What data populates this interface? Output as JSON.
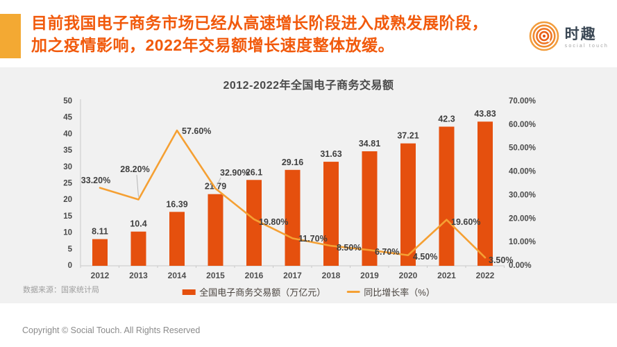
{
  "header": {
    "title_line1": "目前我国电子商务市场已经从高速增长阶段进入成熟发展阶段，",
    "title_line2": "加之疫情影响，2022年交易额增长速度整体放缓。",
    "logo_name": "时趣",
    "logo_subtitle": "social touch"
  },
  "chart_data": {
    "type": "bar",
    "title": "2012-2022年全国电子商务交易额",
    "categories": [
      "2012",
      "2013",
      "2014",
      "2015",
      "2016",
      "2017",
      "2018",
      "2019",
      "2020",
      "2021",
      "2022"
    ],
    "series": [
      {
        "name": "全国电子商务交易额（万亿元）",
        "type": "bar",
        "axis": "left",
        "values": [
          8.11,
          10.4,
          16.39,
          21.79,
          26.1,
          29.16,
          31.63,
          34.81,
          37.21,
          42.3,
          43.83
        ],
        "labels": [
          "8.11",
          "10.4",
          "16.39",
          "21.79",
          "26.1",
          "29.16",
          "31.63",
          "34.81",
          "37.21",
          "42.3",
          "43.83"
        ]
      },
      {
        "name": "同比增长率（%）",
        "type": "line",
        "axis": "right",
        "values": [
          33.2,
          28.2,
          57.6,
          32.9,
          19.8,
          11.7,
          8.5,
          6.7,
          4.5,
          19.6,
          3.5
        ],
        "labels": [
          "33.20%",
          "28.20%",
          "57.60%",
          "32.90%",
          "19.80%",
          "11.70%",
          "8.50%",
          "6.70%",
          "4.50%",
          "19.60%",
          "3.50%"
        ]
      }
    ],
    "left_axis": {
      "min": 0,
      "max": 50,
      "step": 5,
      "ticks": [
        "0",
        "5",
        "10",
        "15",
        "20",
        "25",
        "30",
        "35",
        "40",
        "45",
        "50"
      ]
    },
    "right_axis": {
      "min": 0,
      "max": 70,
      "step": 10,
      "ticks": [
        "0.00%",
        "10.00%",
        "20.00%",
        "30.00%",
        "40.00%",
        "50.00%",
        "60.00%",
        "70.00%"
      ]
    },
    "grid": false,
    "legend_position": "bottom-center"
  },
  "source_note": "数据来源：国家统计局",
  "footer": {
    "copyright": "Copyright © Social Touch. All Rights Reserved"
  },
  "colors": {
    "bar": "#e5500e",
    "line": "#f5a033",
    "accent_square": "#f3a933",
    "headline": "#f1590b",
    "panel_bg": "#f1f1f1",
    "axis_text": "#4a4a4a",
    "value_text": "#3f3f3f",
    "axis_line": "#c9c9c9",
    "leader_line": "#b5b5b5"
  }
}
